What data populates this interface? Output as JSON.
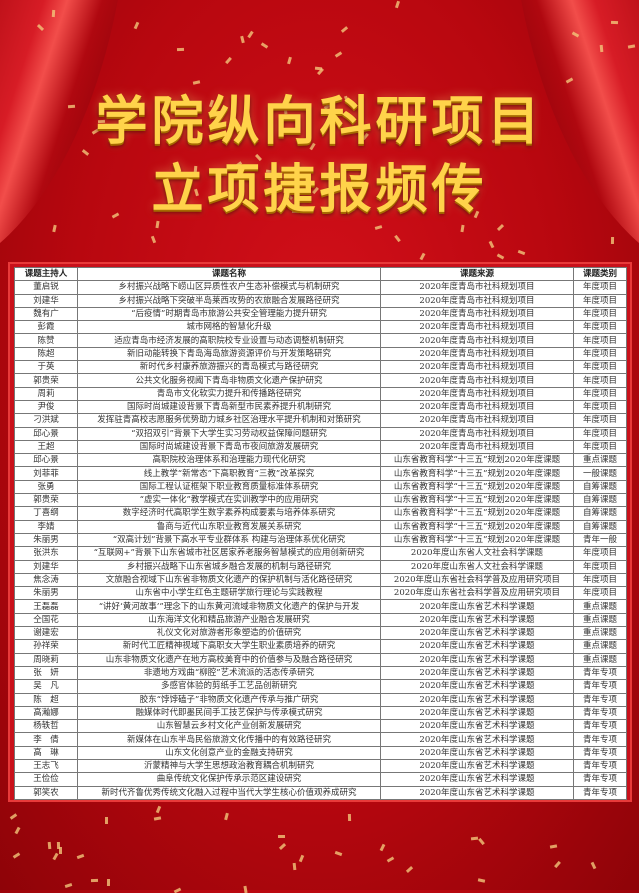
{
  "title": {
    "line1": "学院纵向科研项目",
    "line2": "立项捷报频传"
  },
  "colors": {
    "background": "#b8070f",
    "title_gold": "#ffd34a",
    "table_frame": "#c9101a"
  },
  "table": {
    "headers": [
      "课题主持人",
      "课题名称",
      "课题来源",
      "课题类别"
    ],
    "rows": [
      [
        "董启锐",
        "乡村振兴战略下崂山区异质性农户生态补偿模式与机制研究",
        "2020年度青岛市社科规划项目",
        "年度项目"
      ],
      [
        "刘建华",
        "乡村振兴战略下突破半岛莱西攻势的农旅融合发展路径研究",
        "2020年度青岛市社科规划项目",
        "年度项目"
      ],
      [
        "魏有广",
        "“后疫情”时期青岛市旅游公共安全管理能力提升研究",
        "2020年度青岛市社科规划项目",
        "年度项目"
      ],
      [
        "彭霞",
        "城市网格的智慧化升级",
        "2020年度青岛市社科规划项目",
        "年度项目"
      ],
      [
        "陈赞",
        "适应青岛市经济发展的高职院校专业设置与动态调整机制研究",
        "2020年度青岛市社科规划项目",
        "年度项目"
      ],
      [
        "陈超",
        "新旧动能转换下青岛海岛旅游资源评价与开发策略研究",
        "2020年度青岛市社科规划项目",
        "年度项目"
      ],
      [
        "于英",
        "新时代乡村康养旅游振兴的青岛模式与路径研究",
        "2020年度青岛市社科规划项目",
        "年度项目"
      ],
      [
        "郭贵荣",
        "公共文化服务视阈下青岛非物质文化遗产保护研究",
        "2020年度青岛市社科规划项目",
        "年度项目"
      ],
      [
        "周莉",
        "青岛市文化软实力提升和传播路径研究",
        "2020年度青岛市社科规划项目",
        "年度项目"
      ],
      [
        "尹俊",
        "国际时尚城建设背景下青岛新型市民素养提升机制研究",
        "2020年度青岛市社科规划项目",
        "年度项目"
      ],
      [
        "刁洪斌",
        "发挥驻青高校志愿服务优势助力城乡社区治理水平提升机制和对策研究",
        "2020年度青岛市社科规划项目",
        "年度项目"
      ],
      [
        "邱心景",
        "“双招双引”背景下大学生实习劳动权益保障问题研究",
        "2020年度青岛市社科规划项目",
        "年度项目"
      ],
      [
        "王超",
        "国际时尚城建设背景下青岛市夜间旅游发展研究",
        "2020年度青岛市社科规划项目",
        "年度项目"
      ],
      [
        "邱心景",
        "高职院校治理体系和治理能力现代化研究",
        "山东省教育科学“十三五”规划2020年度课题",
        "重点课题"
      ],
      [
        "刘菲菲",
        "线上教学“新常态”下高职教育“三教”改革探究",
        "山东省教育科学“十三五”规划2020年度课题",
        "一般课题"
      ],
      [
        "张勇",
        "国际工程认证框架下职业教育质量标准体系研究",
        "山东省教育科学“十三五”规划2020年度课题",
        "自筹课题"
      ],
      [
        "郭贵荣",
        "“虚实一体化”教学模式在实训教学中的应用研究",
        "山东省教育科学“十三五”规划2020年度课题",
        "自筹课题"
      ],
      [
        "丁喜纲",
        "数字经济时代高职学生数字素养构成要素与培养体系研究",
        "山东省教育科学“十三五”规划2020年度课题",
        "自筹课题"
      ],
      [
        "李婧",
        "鲁商与近代山东职业教育发展关系研究",
        "山东省教育科学“十三五”规划2020年度课题",
        "自筹课题"
      ],
      [
        "朱丽男",
        "“双高计划”背景下高水平专业群体系 构建与治理体系优化研究",
        "山东省教育科学“十三五”规划2020年度课题",
        "青年一般"
      ],
      [
        "张洪东",
        "“互联网+”背景下山东省城市社区居家养老服务智慧模式的应用创新研究",
        "2020年度山东省人文社会科学课题",
        "年度项目"
      ],
      [
        "刘建华",
        "乡村振兴战略下山东省城乡融合发展的机制与路径研究",
        "2020年度山东省人文社会科学课题",
        "年度项目"
      ],
      [
        "焦念涛",
        "文旅融合视域下山东省非物质文化遗产的保护机制与活化路径研究",
        "2020年度山东省社会科学普及应用研究项目",
        "年度项目"
      ],
      [
        "朱丽男",
        "山东省中小学生红色主题研学旅行理论与实践教程",
        "2020年度山东省社会科学普及应用研究项目",
        "年度项目"
      ],
      [
        "王磊磊",
        "“讲好‘黄河故事’”理念下的山东黄河流域非物质文化遗产的保护与开发",
        "2020年度山东省艺术科学课题",
        "重点课题"
      ],
      [
        "仝国花",
        "山东海洋文化和精品旅游产业融合发展研究",
        "2020年度山东省艺术科学课题",
        "重点课题"
      ],
      [
        "谢建宏",
        "礼仪文化对旅游者形象塑造的价值研究",
        "2020年度山东省艺术科学课题",
        "重点课题"
      ],
      [
        "孙祥荣",
        "新时代工匠精神视域下高职女大学生职业素质培养的研究",
        "2020年度山东省艺术科学课题",
        "重点课题"
      ],
      [
        "周晓莉",
        "山东非物质文化遗产在地方高校美育中的价值参与及融合路径研究",
        "2020年度山东省艺术科学课题",
        "重点课题"
      ],
      [
        "张　妍",
        "非遗地方戏曲“柳腔”艺术流派的活态传承研究",
        "2020年度山东省艺术科学课题",
        "青年专项"
      ],
      [
        "吴　凡",
        "多感官体验的剪纸手工艺品创新研究",
        "2020年度山东省艺术科学课题",
        "青年专项"
      ],
      [
        "陈　超",
        "胶东“饽饽磕子”非物质文化遗产传承与推广研究",
        "2020年度山东省艺术科学课题",
        "青年专项"
      ],
      [
        "高瀚娜",
        "融媒体时代即墨民间手工技艺保护与传承模式研究",
        "2020年度山东省艺术科学课题",
        "青年专项"
      ],
      [
        "杨轶哲",
        "山东智慧云乡村文化产业创新发展研究",
        "2020年度山东省艺术科学课题",
        "青年专项"
      ],
      [
        "李　倩",
        "新媒体在山东半岛民俗旅游文化传播中的有效路径研究",
        "2020年度山东省艺术科学课题",
        "青年专项"
      ],
      [
        "高　琳",
        "山东文化创意产业的金融支持研究",
        "2020年度山东省艺术科学课题",
        "青年专项"
      ],
      [
        "王志飞",
        "沂蒙精神与大学生思想政治教育耦合机制研究",
        "2020年度山东省艺术科学课题",
        "青年专项"
      ],
      [
        "王俭俭",
        "曲阜传统文化保护传承示范区建设研究",
        "2020年度山东省艺术科学课题",
        "青年专项"
      ],
      [
        "郭笑农",
        "新时代齐鲁优秀传统文化融入过程中当代大学生核心价值观养成研究",
        "2020年度山东省艺术科学课题",
        "青年专项"
      ]
    ]
  }
}
